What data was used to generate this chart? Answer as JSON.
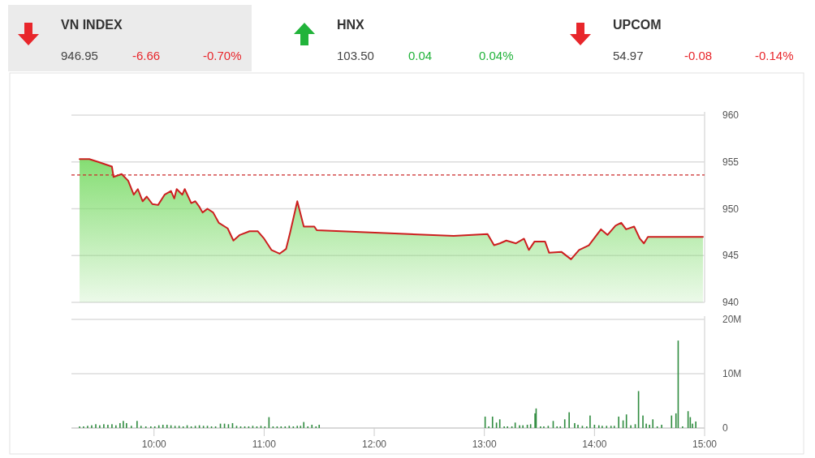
{
  "chart_data": [
    {
      "type": "other",
      "annotations": [
        "VN INDEX",
        "946.95",
        "-6.66",
        "-0.70%",
        "HNX",
        "103.50",
        "0.04",
        "0.04%",
        "UPCOM",
        "54.97",
        "-0.08",
        "-0.14%"
      ]
    },
    {
      "type": "area",
      "xlim": [
        9.25,
        15
      ],
      "ylim": [
        940,
        960
      ],
      "yticks": [
        940,
        945,
        950,
        955,
        960
      ],
      "grid": "y",
      "tick_labels": "y",
      "ref_lines": [
        {
          "axis": "y",
          "value": 953.61,
          "color": "#cc2a2a",
          "line_style": "dashed"
        }
      ],
      "x": [
        9.324,
        9.412,
        9.493,
        9.618,
        9.632,
        9.706,
        9.765,
        9.816,
        9.853,
        9.897,
        9.934,
        9.985,
        10.037,
        10.096,
        10.154,
        10.184,
        10.206,
        10.257,
        10.279,
        10.338,
        10.375,
        10.412,
        10.441,
        10.485,
        10.537,
        10.588,
        10.669,
        10.721,
        10.779,
        10.868,
        10.941,
        11.0,
        11.066,
        11.14,
        11.199,
        11.235,
        11.301,
        11.36,
        11.456,
        11.478,
        12.721,
        13.029,
        13.088,
        13.14,
        13.199,
        13.287,
        13.36,
        13.404,
        13.456,
        13.551,
        13.588,
        13.699,
        13.787,
        13.86,
        13.949,
        14.059,
        14.118,
        14.191,
        14.243,
        14.287,
        14.36,
        14.412,
        14.449,
        14.485,
        14.985
      ],
      "series": [
        {
          "color": "#cc1f1f",
          "values": [
            955.3,
            955.3,
            955.0,
            954.5,
            953.4,
            953.7,
            953.0,
            951.5,
            952.1,
            950.8,
            951.3,
            950.5,
            950.4,
            951.5,
            951.9,
            951.1,
            952.1,
            951.5,
            952.1,
            950.6,
            950.8,
            950.2,
            949.6,
            950.0,
            949.6,
            948.5,
            947.9,
            946.6,
            947.2,
            947.6,
            947.6,
            946.8,
            945.6,
            945.2,
            945.7,
            947.4,
            950.8,
            948.1,
            948.1,
            947.7,
            947.1,
            947.3,
            946.1,
            946.3,
            946.6,
            946.3,
            946.8,
            945.6,
            946.5,
            946.5,
            945.3,
            945.4,
            944.6,
            945.6,
            946.1,
            947.8,
            947.2,
            948.2,
            948.5,
            947.8,
            948.1,
            946.8,
            946.3,
            947.0,
            947.0
          ]
        }
      ]
    },
    {
      "type": "bar",
      "xlim": [
        9.25,
        15
      ],
      "ylim": [
        0,
        20
      ],
      "grid": "y",
      "xticks": [
        {
          "value": 10,
          "label": "10:00"
        },
        {
          "value": 11,
          "label": "11:00"
        },
        {
          "value": 12,
          "label": "12:00"
        },
        {
          "value": 13,
          "label": "13:00"
        },
        {
          "value": 14,
          "label": "14:00"
        },
        {
          "value": 15,
          "label": "15:00"
        }
      ],
      "yticks": [
        0,
        {
          "value": 10,
          "label": "10M"
        },
        {
          "value": 20,
          "label": "20M"
        }
      ],
      "x": [
        9.324,
        9.36,
        9.397,
        9.434,
        9.471,
        9.507,
        9.544,
        9.581,
        9.618,
        9.654,
        9.691,
        9.721,
        9.75,
        9.794,
        9.846,
        9.882,
        9.926,
        9.971,
        10.007,
        10.044,
        10.081,
        10.118,
        10.154,
        10.191,
        10.228,
        10.265,
        10.301,
        10.338,
        10.375,
        10.412,
        10.449,
        10.485,
        10.522,
        10.559,
        10.603,
        10.64,
        10.676,
        10.713,
        10.75,
        10.787,
        10.824,
        10.86,
        10.897,
        10.934,
        10.971,
        11.007,
        11.044,
        11.081,
        11.118,
        11.154,
        11.191,
        11.228,
        11.265,
        11.301,
        11.331,
        11.36,
        11.397,
        11.434,
        11.471,
        11.5,
        13.007,
        13.04,
        13.074,
        13.11,
        13.14,
        13.18,
        13.21,
        13.25,
        13.28,
        13.32,
        13.35,
        13.39,
        13.42,
        13.46,
        13.47,
        13.51,
        13.54,
        13.58,
        13.625,
        13.66,
        13.69,
        13.73,
        13.77,
        13.82,
        13.85,
        13.89,
        13.93,
        13.96,
        14.0,
        14.04,
        14.07,
        14.11,
        14.15,
        14.18,
        14.22,
        14.26,
        14.29,
        14.33,
        14.37,
        14.4,
        14.44,
        14.47,
        14.5,
        14.53,
        14.57,
        14.61,
        14.7,
        14.74,
        14.76,
        14.8,
        14.85,
        14.87,
        14.89,
        14.92
      ],
      "series": [
        {
          "color": "#2e8b3e",
          "values": [
            0.3,
            0.3,
            0.4,
            0.5,
            0.7,
            0.5,
            0.7,
            0.6,
            0.7,
            0.5,
            0.9,
            1.3,
            0.9,
            0.4,
            1.3,
            0.4,
            0.3,
            0.3,
            0.3,
            0.5,
            0.6,
            0.6,
            0.5,
            0.4,
            0.4,
            0.3,
            0.5,
            0.3,
            0.4,
            0.5,
            0.4,
            0.4,
            0.3,
            0.3,
            0.8,
            0.8,
            0.7,
            0.9,
            0.4,
            0.3,
            0.3,
            0.3,
            0.4,
            0.3,
            0.4,
            0.3,
            2.0,
            0.3,
            0.3,
            0.3,
            0.3,
            0.4,
            0.3,
            0.4,
            0.4,
            1.1,
            0.3,
            0.6,
            0.3,
            0.6,
            2.1,
            0.3,
            2.1,
            1.0,
            1.6,
            0.3,
            0.3,
            0.3,
            1.0,
            0.5,
            0.5,
            0.6,
            0.7,
            2.7,
            3.6,
            0.3,
            0.3,
            0.4,
            1.3,
            0.3,
            0.3,
            1.6,
            2.9,
            0.9,
            0.6,
            0.4,
            0.3,
            2.3,
            0.6,
            0.5,
            0.4,
            0.4,
            0.4,
            0.4,
            2.1,
            1.4,
            2.5,
            0.5,
            0.7,
            6.8,
            2.3,
            0.8,
            0.6,
            1.6,
            0.3,
            0.6,
            2.3,
            2.7,
            16.1,
            0.3,
            3.1,
            2.0,
            0.8,
            1.2
          ]
        }
      ]
    }
  ]
}
